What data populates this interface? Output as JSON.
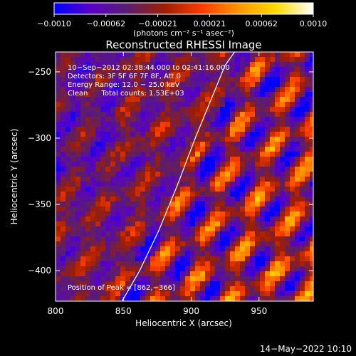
{
  "colorbar": {
    "ticks": [
      "−0.0010",
      "−0.00062",
      "−0.00021",
      "0.00021",
      "0.00062",
      "0.0010"
    ],
    "unit_label": "(photons cm⁻² s⁻¹ asec⁻²)",
    "range": [
      -0.001,
      0.001
    ],
    "colors": [
      "#0000ff",
      "#5a00c8",
      "#5a1e6e",
      "#a01e00",
      "#ff3c00",
      "#ff9600",
      "#ffdc00",
      "#ffffff"
    ]
  },
  "chart_data": {
    "type": "heatmap",
    "title": "Reconstructed RHESSI Image",
    "xlabel": "Heliocentric X (arcsec)",
    "ylabel": "Heliocentric Y (arcsec)",
    "xlim": [
      800,
      990
    ],
    "ylim": [
      -423,
      -235
    ],
    "xticks": [
      800,
      850,
      900,
      950
    ],
    "yticks": [
      -250,
      -300,
      -350,
      -400
    ],
    "xtick_labels": [
      "800",
      "850",
      "900",
      "950"
    ],
    "ytick_labels": [
      "−250",
      "−300",
      "−350",
      "−400"
    ],
    "annotations": [
      "10−Sep−2012 02:38:44.000 to 02:41:16.000",
      "Detectors: 3F 5F 6F 7F 8F, Att 0",
      "Energy Range: 12.0 − 25.0 keV",
      "Clean      Total counts: 1.53E+03"
    ],
    "peak_label": "Position of Peak = [862,−366]",
    "limb_curve": {
      "x": [
        849,
        862,
        876,
        890,
        903,
        915,
        925,
        932
      ],
      "y": [
        -423,
        -400,
        -370,
        -335,
        -300,
        -270,
        -245,
        -235
      ]
    }
  },
  "footer": {
    "date": "14−May−2022 10:10"
  }
}
